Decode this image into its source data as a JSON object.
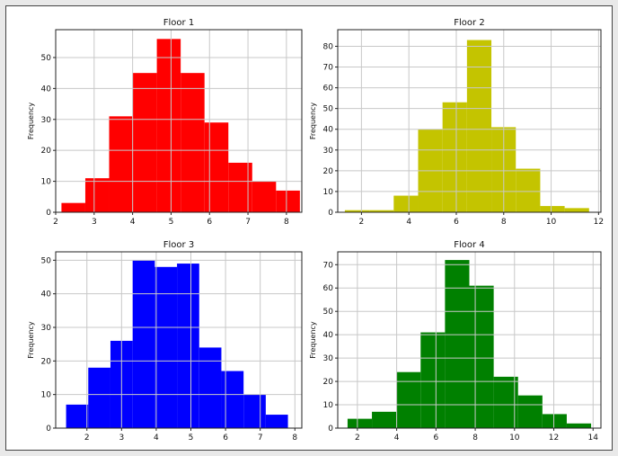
{
  "figure": {
    "background": "#ffffff"
  },
  "chart_data": [
    {
      "type": "bar",
      "subtype": "histogram",
      "title": "Floor 1",
      "xlabel": "",
      "ylabel": "Frequency",
      "color": "#ff0000",
      "grid": true,
      "xlim": [
        2.0,
        8.4
      ],
      "ylim": [
        0,
        59
      ],
      "xticks": [
        2,
        3,
        4,
        5,
        6,
        7,
        8
      ],
      "yticks": [
        0,
        10,
        20,
        30,
        40,
        50
      ],
      "bin_edges": [
        2.15,
        2.77,
        3.39,
        4.01,
        4.63,
        5.25,
        5.87,
        6.49,
        7.11,
        7.73,
        8.35
      ],
      "values": [
        3,
        11,
        31,
        45,
        56,
        45,
        29,
        16,
        10,
        7
      ]
    },
    {
      "type": "bar",
      "subtype": "histogram",
      "title": "Floor 2",
      "xlabel": "",
      "ylabel": "Frequency",
      "color": "#c4c400",
      "grid": true,
      "xlim": [
        1.0,
        12.1
      ],
      "ylim": [
        0,
        88
      ],
      "xticks": [
        2,
        4,
        6,
        8,
        10,
        12
      ],
      "yticks": [
        0,
        10,
        20,
        30,
        40,
        50,
        60,
        70,
        80
      ],
      "bin_edges": [
        1.3,
        2.33,
        3.36,
        4.39,
        5.42,
        6.45,
        7.48,
        8.51,
        9.54,
        10.57,
        11.6
      ],
      "values": [
        1,
        1,
        8,
        40,
        53,
        83,
        41,
        21,
        3,
        2
      ]
    },
    {
      "type": "bar",
      "subtype": "histogram",
      "title": "Floor 3",
      "xlabel": "",
      "ylabel": "Frequency",
      "color": "#0000ff",
      "grid": true,
      "xlim": [
        1.1,
        8.2
      ],
      "ylim": [
        0,
        52.5
      ],
      "xticks": [
        2,
        3,
        4,
        5,
        6,
        7,
        8
      ],
      "yticks": [
        0,
        10,
        20,
        30,
        40,
        50
      ],
      "bin_edges": [
        1.4,
        2.04,
        2.68,
        3.32,
        3.96,
        4.6,
        5.24,
        5.88,
        6.52,
        7.16,
        7.8
      ],
      "values": [
        7,
        18,
        26,
        50,
        48,
        49,
        24,
        17,
        10,
        4
      ]
    },
    {
      "type": "bar",
      "subtype": "histogram",
      "title": "Floor 4",
      "xlabel": "",
      "ylabel": "Frequency",
      "color": "#008000",
      "grid": true,
      "xlim": [
        1.0,
        14.4
      ],
      "ylim": [
        0,
        75.5
      ],
      "xticks": [
        2,
        4,
        6,
        8,
        10,
        12,
        14
      ],
      "yticks": [
        0,
        10,
        20,
        30,
        40,
        50,
        60,
        70
      ],
      "bin_edges": [
        1.5,
        2.74,
        3.98,
        5.22,
        6.46,
        7.7,
        8.94,
        10.18,
        11.42,
        12.66,
        13.9
      ],
      "values": [
        4,
        7,
        24,
        41,
        72,
        61,
        22,
        14,
        6,
        2
      ]
    }
  ]
}
